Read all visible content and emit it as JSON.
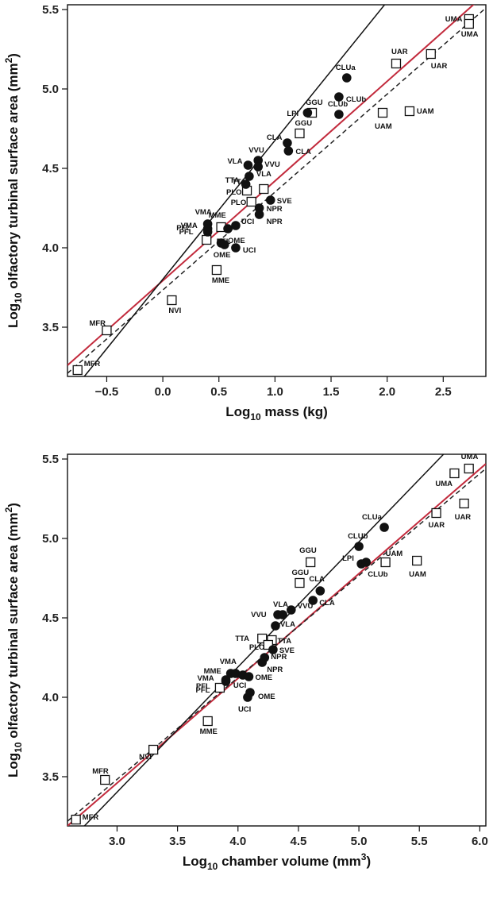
{
  "chart_data": [
    {
      "type": "scatter",
      "xlabel": {
        "pre": "Log",
        "sub": "10",
        "post": " mass (kg)"
      },
      "ylabel": {
        "pre": "Log",
        "sub": "10",
        "post": " olfactory turbinal surface area (mm",
        "sup": "2",
        "end": ")"
      },
      "xlim": [
        -0.85,
        2.88
      ],
      "ylim": [
        3.19,
        5.53
      ],
      "xticks": [
        -0.5,
        0.0,
        0.5,
        1.0,
        1.5,
        2.0,
        2.5
      ],
      "xtick_labels": [
        "−0.5",
        "0.0",
        "0.5",
        "1.0",
        "1.5",
        "2.0",
        "2.5"
      ],
      "yticks": [
        3.5,
        4.0,
        4.5,
        5.0,
        5.5
      ],
      "ytick_labels": [
        "3.5",
        "4.0",
        "4.5",
        "5.0",
        "5.5"
      ],
      "series": [
        {
          "marker": "square-open",
          "color": "#111111",
          "points": [
            {
              "x": -0.5,
              "y": 3.48,
              "label": "MFR",
              "dx": -22,
              "dy": -6
            },
            {
              "x": -0.76,
              "y": 3.23,
              "label": "MFR",
              "dx": 8,
              "dy": -5
            },
            {
              "x": 0.08,
              "y": 3.67,
              "label": "NVI",
              "dx": -4,
              "dy": 16
            },
            {
              "x": 0.48,
              "y": 3.86,
              "label": "MME",
              "dx": -6,
              "dy": 16
            },
            {
              "x": 0.52,
              "y": 4.13,
              "label": "MME",
              "dx": -16,
              "dy": -12
            },
            {
              "x": 0.39,
              "y": 4.05,
              "label": "PFL",
              "dx": -38,
              "dy": -12
            },
            {
              "x": 0.75,
              "y": 4.36,
              "label": "PLO",
              "dx": -26,
              "dy": 5
            },
            {
              "x": 0.79,
              "y": 4.29,
              "label": "PLO",
              "dx": -26,
              "dy": 4
            },
            {
              "x": 0.9,
              "y": 4.37,
              "label": "TTA",
              "dx": -40,
              "dy": -6
            },
            {
              "x": 1.22,
              "y": 4.72,
              "label": "GGU",
              "dx": -6,
              "dy": -10
            },
            {
              "x": 1.33,
              "y": 4.85,
              "label": "GGU",
              "dx": -8,
              "dy": -10
            },
            {
              "x": 1.96,
              "y": 4.85,
              "label": "UAM",
              "dx": -10,
              "dy": 20
            },
            {
              "x": 2.2,
              "y": 4.86,
              "label": "UAM",
              "dx": 9,
              "dy": 3
            },
            {
              "x": 2.08,
              "y": 5.16,
              "label": "UAR",
              "dx": -6,
              "dy": -12
            },
            {
              "x": 2.39,
              "y": 5.22,
              "label": "UAR",
              "dx": 0,
              "dy": 18
            },
            {
              "x": 2.73,
              "y": 5.44,
              "label": "UMA",
              "dx": -30,
              "dy": 3
            },
            {
              "x": 2.73,
              "y": 5.41,
              "label": "UMA",
              "dx": -10,
              "dy": 16
            }
          ]
        },
        {
          "marker": "circle-filled",
          "color": "#111111",
          "points": [
            {
              "x": 0.4,
              "y": 4.15,
              "label": "VMA",
              "dx": -16,
              "dy": -12
            },
            {
              "x": 0.4,
              "y": 4.12,
              "label": "VMA",
              "dx": -34,
              "dy": -1
            },
            {
              "x": 0.4,
              "y": 4.1,
              "label": "PFL",
              "dx": -36,
              "dy": 3
            },
            {
              "x": 0.52,
              "y": 4.03,
              "label": "PFL",
              "dx": -6,
              "dy": 1
            },
            {
              "x": 0.58,
              "y": 4.12,
              "label": "OME",
              "dx": 0,
              "dy": 18
            },
            {
              "x": 0.65,
              "y": 4.14,
              "label": "UCI",
              "dx": 7,
              "dy": -2
            },
            {
              "x": 0.65,
              "y": 4.0,
              "label": "UCI",
              "dx": 9,
              "dy": 6
            },
            {
              "x": 0.55,
              "y": 4.02,
              "label": "OME",
              "dx": -14,
              "dy": 16
            },
            {
              "x": 0.76,
              "y": 4.52,
              "label": "VLA",
              "dx": -26,
              "dy": -2
            },
            {
              "x": 0.85,
              "y": 4.55,
              "label": "VVU",
              "dx": -12,
              "dy": -10
            },
            {
              "x": 0.85,
              "y": 4.51,
              "label": "VVU",
              "dx": 8,
              "dy": 0
            },
            {
              "x": 0.77,
              "y": 4.45,
              "label": "VLA",
              "dx": 9,
              "dy": 0
            },
            {
              "x": 0.74,
              "y": 4.4,
              "label": "TTA",
              "dx": -26,
              "dy": -2
            },
            {
              "x": 0.96,
              "y": 4.3,
              "label": "SVE",
              "dx": 8,
              "dy": 4
            },
            {
              "x": 0.86,
              "y": 4.25,
              "label": "NPR",
              "dx": 9,
              "dy": 4
            },
            {
              "x": 0.86,
              "y": 4.21,
              "label": "NPR",
              "dx": 9,
              "dy": 12
            },
            {
              "x": 1.11,
              "y": 4.66,
              "label": "CLA",
              "dx": -26,
              "dy": -4
            },
            {
              "x": 1.12,
              "y": 4.61,
              "label": "CLA",
              "dx": 9,
              "dy": 4
            },
            {
              "x": 1.29,
              "y": 4.85,
              "label": "LPI",
              "dx": -26,
              "dy": 4
            },
            {
              "x": 1.57,
              "y": 4.95,
              "label": "CLUb",
              "dx": 9,
              "dy": 6
            },
            {
              "x": 1.57,
              "y": 4.84,
              "label": "CLUb",
              "dx": -14,
              "dy": -10
            },
            {
              "x": 1.64,
              "y": 5.07,
              "label": "CLUa",
              "dx": -14,
              "dy": -10
            }
          ]
        }
      ],
      "lines": [
        {
          "name": "",
          "color": "#c22a3c",
          "dash": false,
          "points": [
            [
              -0.85,
              3.26
            ],
            [
              2.88,
              5.6
            ]
          ]
        },
        {
          "name": "",
          "color": "#222222",
          "dash": true,
          "points": [
            [
              -0.85,
              3.21
            ],
            [
              2.88,
              5.51
            ]
          ]
        },
        {
          "name": "",
          "color": "#111111",
          "dash": false,
          "points": [
            [
              -0.7,
              3.19
            ],
            [
              2.0,
              5.55
            ]
          ]
        }
      ]
    },
    {
      "type": "scatter",
      "xlabel": {
        "pre": "Log",
        "sub": "10",
        "post": " chamber volume (mm",
        "sup": "3",
        "end": ")"
      },
      "ylabel": {
        "pre": "Log",
        "sub": "10",
        "post": " olfactory turbinal surface area (mm",
        "sup": "2",
        "end": ")"
      },
      "xlim": [
        2.59,
        6.05
      ],
      "ylim": [
        3.19,
        5.53
      ],
      "xticks": [
        3.0,
        3.5,
        4.0,
        4.5,
        5.0,
        5.5,
        6.0
      ],
      "xtick_labels": [
        "3.0",
        "3.5",
        "4.0",
        "4.5",
        "5.0",
        "5.5",
        "6.0"
      ],
      "yticks": [
        3.5,
        4.0,
        4.5,
        5.0,
        5.5
      ],
      "ytick_labels": [
        "3.5",
        "4.0",
        "4.5",
        "5.0",
        "5.5"
      ],
      "series": [
        {
          "marker": "square-open",
          "color": "#111111",
          "points": [
            {
              "x": 2.9,
              "y": 3.48,
              "label": "MFR",
              "dx": -16,
              "dy": -8
            },
            {
              "x": 2.66,
              "y": 3.23,
              "label": "MFR",
              "dx": 8,
              "dy": 0
            },
            {
              "x": 3.3,
              "y": 3.67,
              "label": "NVI",
              "dx": -18,
              "dy": 12
            },
            {
              "x": 3.75,
              "y": 3.85,
              "label": "MME",
              "dx": -10,
              "dy": 16
            },
            {
              "x": 3.85,
              "y": 4.06,
              "label": "PFL",
              "dx": -30,
              "dy": 1
            },
            {
              "x": 4.2,
              "y": 4.37,
              "label": "TTA",
              "dx": -34,
              "dy": 3
            },
            {
              "x": 4.28,
              "y": 4.36,
              "label": "TTA",
              "dx": 7,
              "dy": 4
            },
            {
              "x": 4.25,
              "y": 4.33,
              "label": "PLO",
              "dx": -24,
              "dy": 6
            },
            {
              "x": 4.51,
              "y": 4.72,
              "label": "GGU",
              "dx": -10,
              "dy": -10
            },
            {
              "x": 4.6,
              "y": 4.85,
              "label": "GGU",
              "dx": -14,
              "dy": -12
            },
            {
              "x": 5.22,
              "y": 4.85,
              "label": "UAM",
              "dx": 0,
              "dy": -8
            },
            {
              "x": 5.48,
              "y": 4.86,
              "label": "UAM",
              "dx": -10,
              "dy": 20
            },
            {
              "x": 5.64,
              "y": 5.16,
              "label": "UAR",
              "dx": -10,
              "dy": 18
            },
            {
              "x": 5.87,
              "y": 5.22,
              "label": "UAR",
              "dx": -12,
              "dy": 20
            },
            {
              "x": 5.79,
              "y": 5.41,
              "label": "UMA",
              "dx": -24,
              "dy": 16
            },
            {
              "x": 5.91,
              "y": 5.44,
              "label": "UMA",
              "dx": -10,
              "dy": -12
            }
          ]
        },
        {
          "marker": "circle-filled",
          "color": "#111111",
          "points": [
            {
              "x": 3.9,
              "y": 4.1,
              "label": "VMA",
              "dx": -36,
              "dy": -1
            },
            {
              "x": 3.94,
              "y": 4.15,
              "label": "MME",
              "dx": -34,
              "dy": 0
            },
            {
              "x": 3.98,
              "y": 4.15,
              "label": "VMA",
              "dx": -20,
              "dy": -12
            },
            {
              "x": 4.04,
              "y": 4.14,
              "label": "UCI",
              "dx": -12,
              "dy": 16
            },
            {
              "x": 4.09,
              "y": 4.13,
              "label": "OME",
              "dx": 8,
              "dy": 4
            },
            {
              "x": 3.9,
              "y": 4.11,
              "label": "PFL",
              "dx": -38,
              "dy": 16
            },
            {
              "x": 4.08,
              "y": 4.0,
              "label": "UCI",
              "dx": -12,
              "dy": 18
            },
            {
              "x": 4.1,
              "y": 4.03,
              "label": "OME",
              "dx": 10,
              "dy": 8
            },
            {
              "x": 4.2,
              "y": 4.22,
              "label": "NPR",
              "dx": 6,
              "dy": 12
            },
            {
              "x": 4.22,
              "y": 4.25,
              "label": "NPR",
              "dx": 8,
              "dy": 2
            },
            {
              "x": 4.29,
              "y": 4.3,
              "label": "SVE",
              "dx": 8,
              "dy": 4
            },
            {
              "x": 4.31,
              "y": 4.45,
              "label": "VLA",
              "dx": 6,
              "dy": 1
            },
            {
              "x": 4.33,
              "y": 4.52,
              "label": "VLA",
              "dx": -6,
              "dy": -10
            },
            {
              "x": 4.37,
              "y": 4.52,
              "label": "VVU",
              "dx": -40,
              "dy": 3
            },
            {
              "x": 4.44,
              "y": 4.55,
              "label": "VVU",
              "dx": 8,
              "dy": -2
            },
            {
              "x": 4.62,
              "y": 4.61,
              "label": "CLA",
              "dx": 8,
              "dy": 6
            },
            {
              "x": 4.68,
              "y": 4.67,
              "label": "CLA",
              "dx": -14,
              "dy": -12
            },
            {
              "x": 5.0,
              "y": 4.95,
              "label": "CLUb",
              "dx": -14,
              "dy": -10
            },
            {
              "x": 5.02,
              "y": 4.84,
              "label": "LPI",
              "dx": -24,
              "dy": -4
            },
            {
              "x": 5.06,
              "y": 4.85,
              "label": "CLUb",
              "dx": 2,
              "dy": 18
            },
            {
              "x": 5.21,
              "y": 5.07,
              "label": "CLUa",
              "dx": -28,
              "dy": -10
            }
          ]
        }
      ],
      "lines": [
        {
          "name": "",
          "color": "#c22a3c",
          "dash": false,
          "points": [
            [
              2.59,
              3.19
            ],
            [
              6.05,
              5.47
            ]
          ]
        },
        {
          "name": "",
          "color": "#222222",
          "dash": true,
          "points": [
            [
              2.59,
              3.22
            ],
            [
              6.05,
              5.44
            ]
          ]
        },
        {
          "name": "",
          "color": "#111111",
          "dash": false,
          "points": [
            [
              2.73,
              3.19
            ],
            [
              5.7,
              5.53
            ]
          ]
        }
      ]
    }
  ]
}
